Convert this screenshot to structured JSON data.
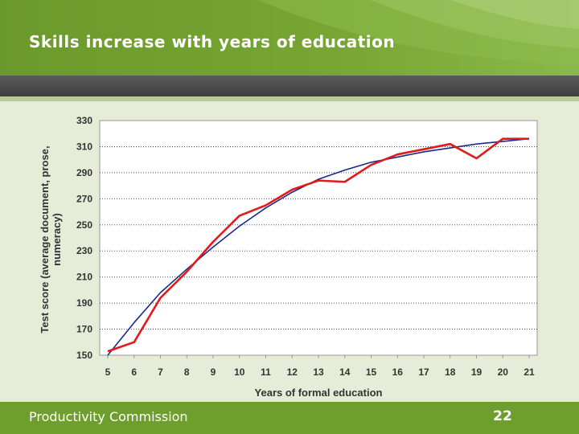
{
  "slide": {
    "title": "Skills increase with years of education",
    "footer_org": "Productivity Commission",
    "page_number": "22"
  },
  "colors": {
    "header_green": "#76a533",
    "band_dark": "#4a4a4a",
    "footer_green": "#6e9e2e",
    "background": "#e6ecd8",
    "actual_line": "#e21a1a",
    "trend_line": "#1a2a8a"
  },
  "chart_data": {
    "type": "line",
    "title": "",
    "xlabel": "Years of formal education",
    "ylabel_lines": [
      "Test score (average document, prose,",
      "numeracy)"
    ],
    "categories": [
      5,
      6,
      7,
      8,
      9,
      10,
      11,
      12,
      13,
      14,
      15,
      16,
      17,
      18,
      19,
      20,
      21
    ],
    "ylim": [
      150,
      330
    ],
    "y_ticks": [
      150,
      170,
      190,
      210,
      230,
      250,
      270,
      290,
      310,
      330
    ],
    "grid": "horizontal dotted",
    "legend": "none",
    "series": [
      {
        "style": "actual",
        "color": "#e21a1a",
        "values": [
          153,
          160,
          194,
          214,
          237,
          257,
          265,
          277,
          284,
          283,
          296,
          304,
          308,
          312,
          301,
          316,
          316
        ]
      },
      {
        "style": "trend",
        "color": "#1a2a8a",
        "values": [
          148,
          175,
          198,
          216,
          233,
          249,
          263,
          275,
          285,
          292,
          298,
          302,
          306,
          309,
          312,
          314,
          316
        ]
      }
    ]
  }
}
